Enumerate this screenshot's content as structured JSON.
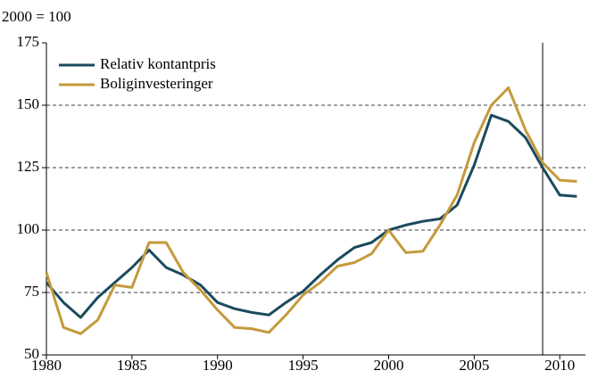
{
  "chart_data": {
    "type": "line",
    "unit_label": "2000 = 100",
    "x": [
      1980,
      1981,
      1982,
      1983,
      1984,
      1985,
      1986,
      1987,
      1988,
      1989,
      1990,
      1991,
      1992,
      1993,
      1994,
      1995,
      1996,
      1997,
      1998,
      1999,
      2000,
      2001,
      2002,
      2003,
      2004,
      2005,
      2006,
      2007,
      2008,
      2009,
      2010,
      2011
    ],
    "series": [
      {
        "name": "Relativ kontantpris",
        "color": "#1b4a5c",
        "values": [
          79,
          71,
          65,
          73,
          79,
          85,
          92,
          85,
          82,
          78,
          71,
          68.5,
          67,
          66,
          71,
          75.5,
          82,
          88,
          93,
          95,
          100,
          102,
          103.5,
          104.5,
          110,
          126,
          146,
          143.5,
          137,
          125,
          114,
          113.5
        ]
      },
      {
        "name": "Boliginvesteringer",
        "color": "#c49a3c",
        "values": [
          83,
          61,
          58.5,
          64,
          78,
          77,
          95,
          95,
          83,
          76,
          68,
          61,
          60.5,
          59,
          66,
          74,
          79,
          85.5,
          87,
          90.5,
          100,
          91,
          91.5,
          102,
          114,
          135,
          150,
          157,
          140,
          127,
          120,
          119.5
        ]
      }
    ],
    "xlim": [
      1980,
      2011.5
    ],
    "xticks": [
      1980,
      1985,
      1990,
      1995,
      2000,
      2005,
      2010
    ],
    "ylim": [
      50,
      175
    ],
    "yticks": [
      50,
      75,
      100,
      125,
      150,
      175
    ],
    "grid": true,
    "vline": 2009,
    "legend": "upper left"
  }
}
